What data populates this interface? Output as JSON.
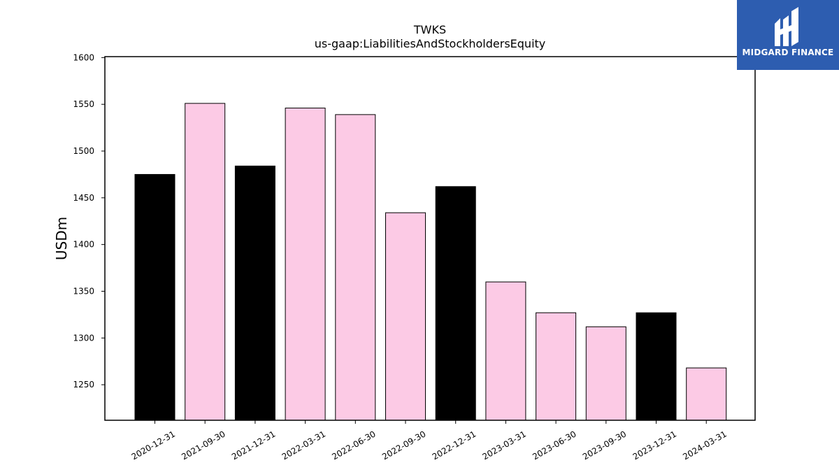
{
  "chart_data": {
    "type": "bar",
    "title": "TWKS",
    "subtitle": "us-gaap:LiabilitiesAndStockholdersEquity",
    "xlabel": "",
    "ylabel": "USDm",
    "ylim": [
      1212,
      1601
    ],
    "yticks": [
      1250,
      1300,
      1350,
      1400,
      1450,
      1500,
      1550,
      1600
    ],
    "categories": [
      "2020-12-31",
      "2021-09-30",
      "2021-12-31",
      "2022-03-31",
      "2022-06-30",
      "2022-09-30",
      "2022-12-31",
      "2023-03-31",
      "2023-06-30",
      "2023-09-30",
      "2023-12-31",
      "2024-03-31"
    ],
    "values": [
      1475,
      1551,
      1484,
      1546,
      1539,
      1434,
      1462,
      1360,
      1327,
      1312,
      1327,
      1268
    ],
    "bar_colors": [
      "#000000",
      "#fccae5",
      "#000000",
      "#fccae5",
      "#fccae5",
      "#fccae5",
      "#000000",
      "#fccae5",
      "#fccae5",
      "#fccae5",
      "#000000",
      "#fccae5"
    ],
    "grid": false
  },
  "logo": {
    "text": "MIDGARD FINANCE",
    "color": "#2d5db0"
  }
}
